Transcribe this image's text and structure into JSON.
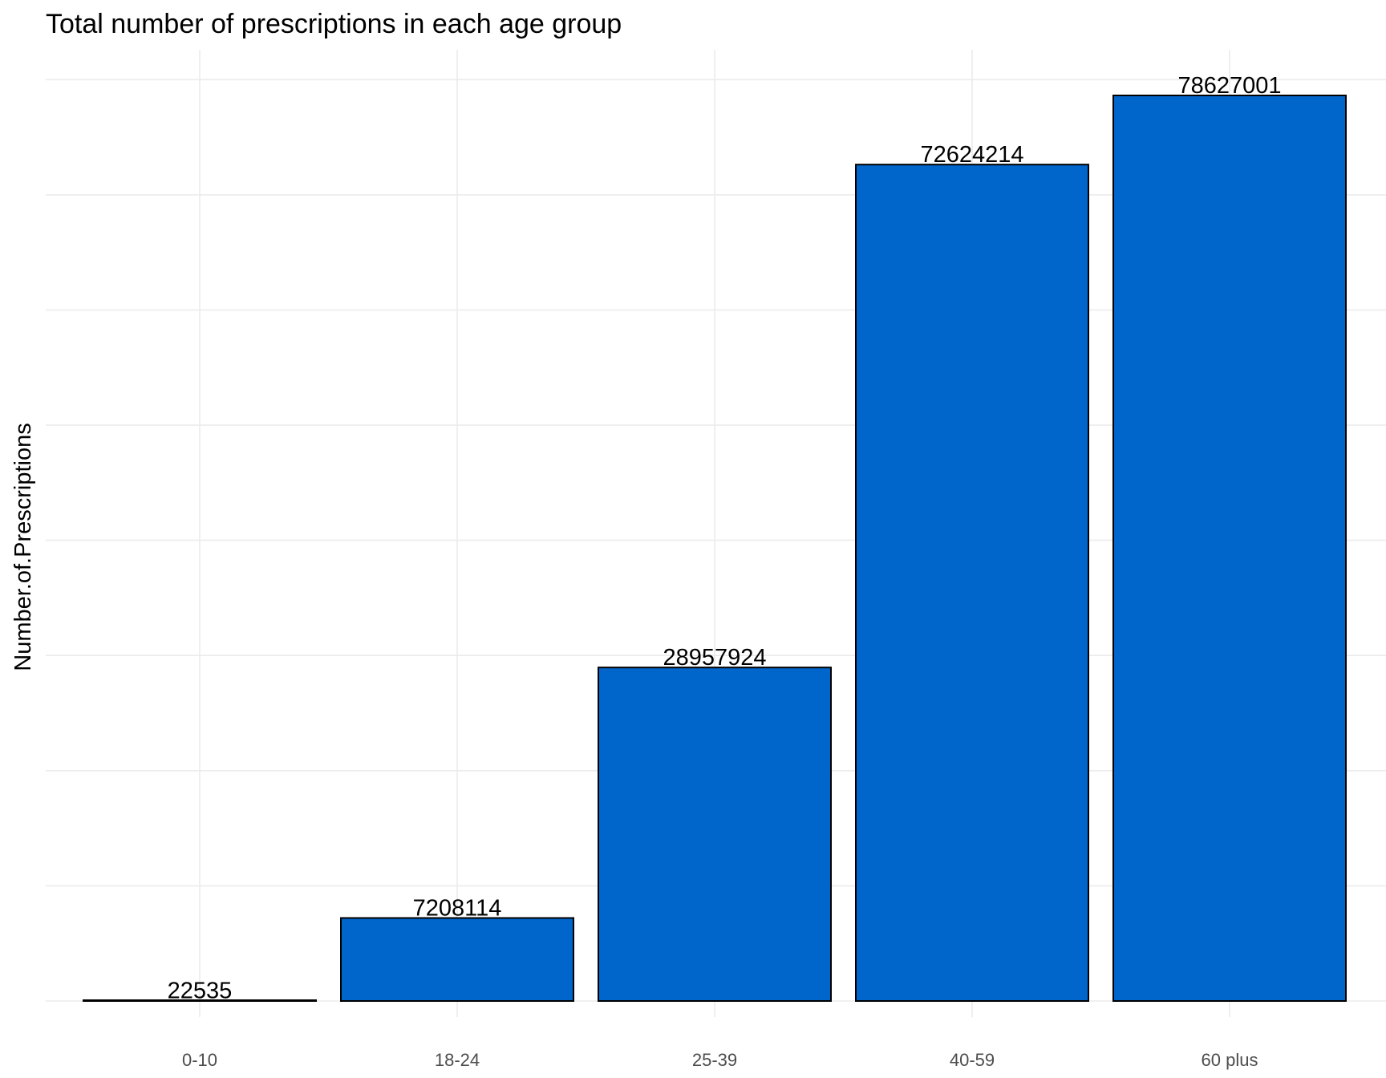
{
  "chart_data": {
    "type": "bar",
    "title": "Total number of prescriptions in each age group",
    "xlabel": "",
    "ylabel": "Number.of.Prescriptions",
    "categories": [
      "0-10",
      "18-24",
      "25-39",
      "40-59",
      "60 plus"
    ],
    "values": [
      22535,
      7208114,
      28957924,
      72624214,
      78627001
    ],
    "data_labels": [
      "22535",
      "7208114",
      "28957924",
      "72624214",
      "78627001"
    ],
    "y_tick_labels_visible": false,
    "grid": true,
    "legend": "none",
    "bar_color": "#0066CC",
    "bar_outline": "#000000",
    "grid_color": "#EBEBEB"
  }
}
